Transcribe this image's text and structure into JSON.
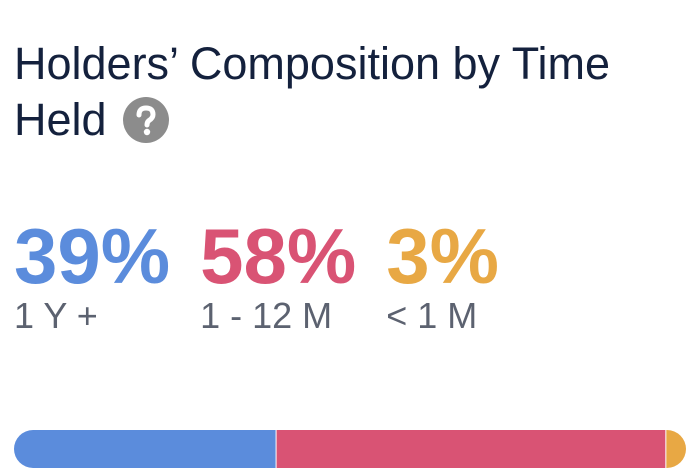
{
  "chart_data": {
    "type": "stacked-bar",
    "title": "Holders’ Composition by Time Held",
    "series": [
      {
        "name": "1 Y +",
        "color": "#5b8cdc",
        "values": [
          39
        ],
        "value_labels": [
          "39%"
        ]
      },
      {
        "name": "1 - 12 M",
        "color": "#d95374",
        "values": [
          58
        ],
        "value_labels": [
          "58%"
        ]
      },
      {
        "name": "< 1 M",
        "color": "#e8a844",
        "values": [
          3
        ],
        "value_labels": [
          "3%"
        ]
      }
    ]
  }
}
